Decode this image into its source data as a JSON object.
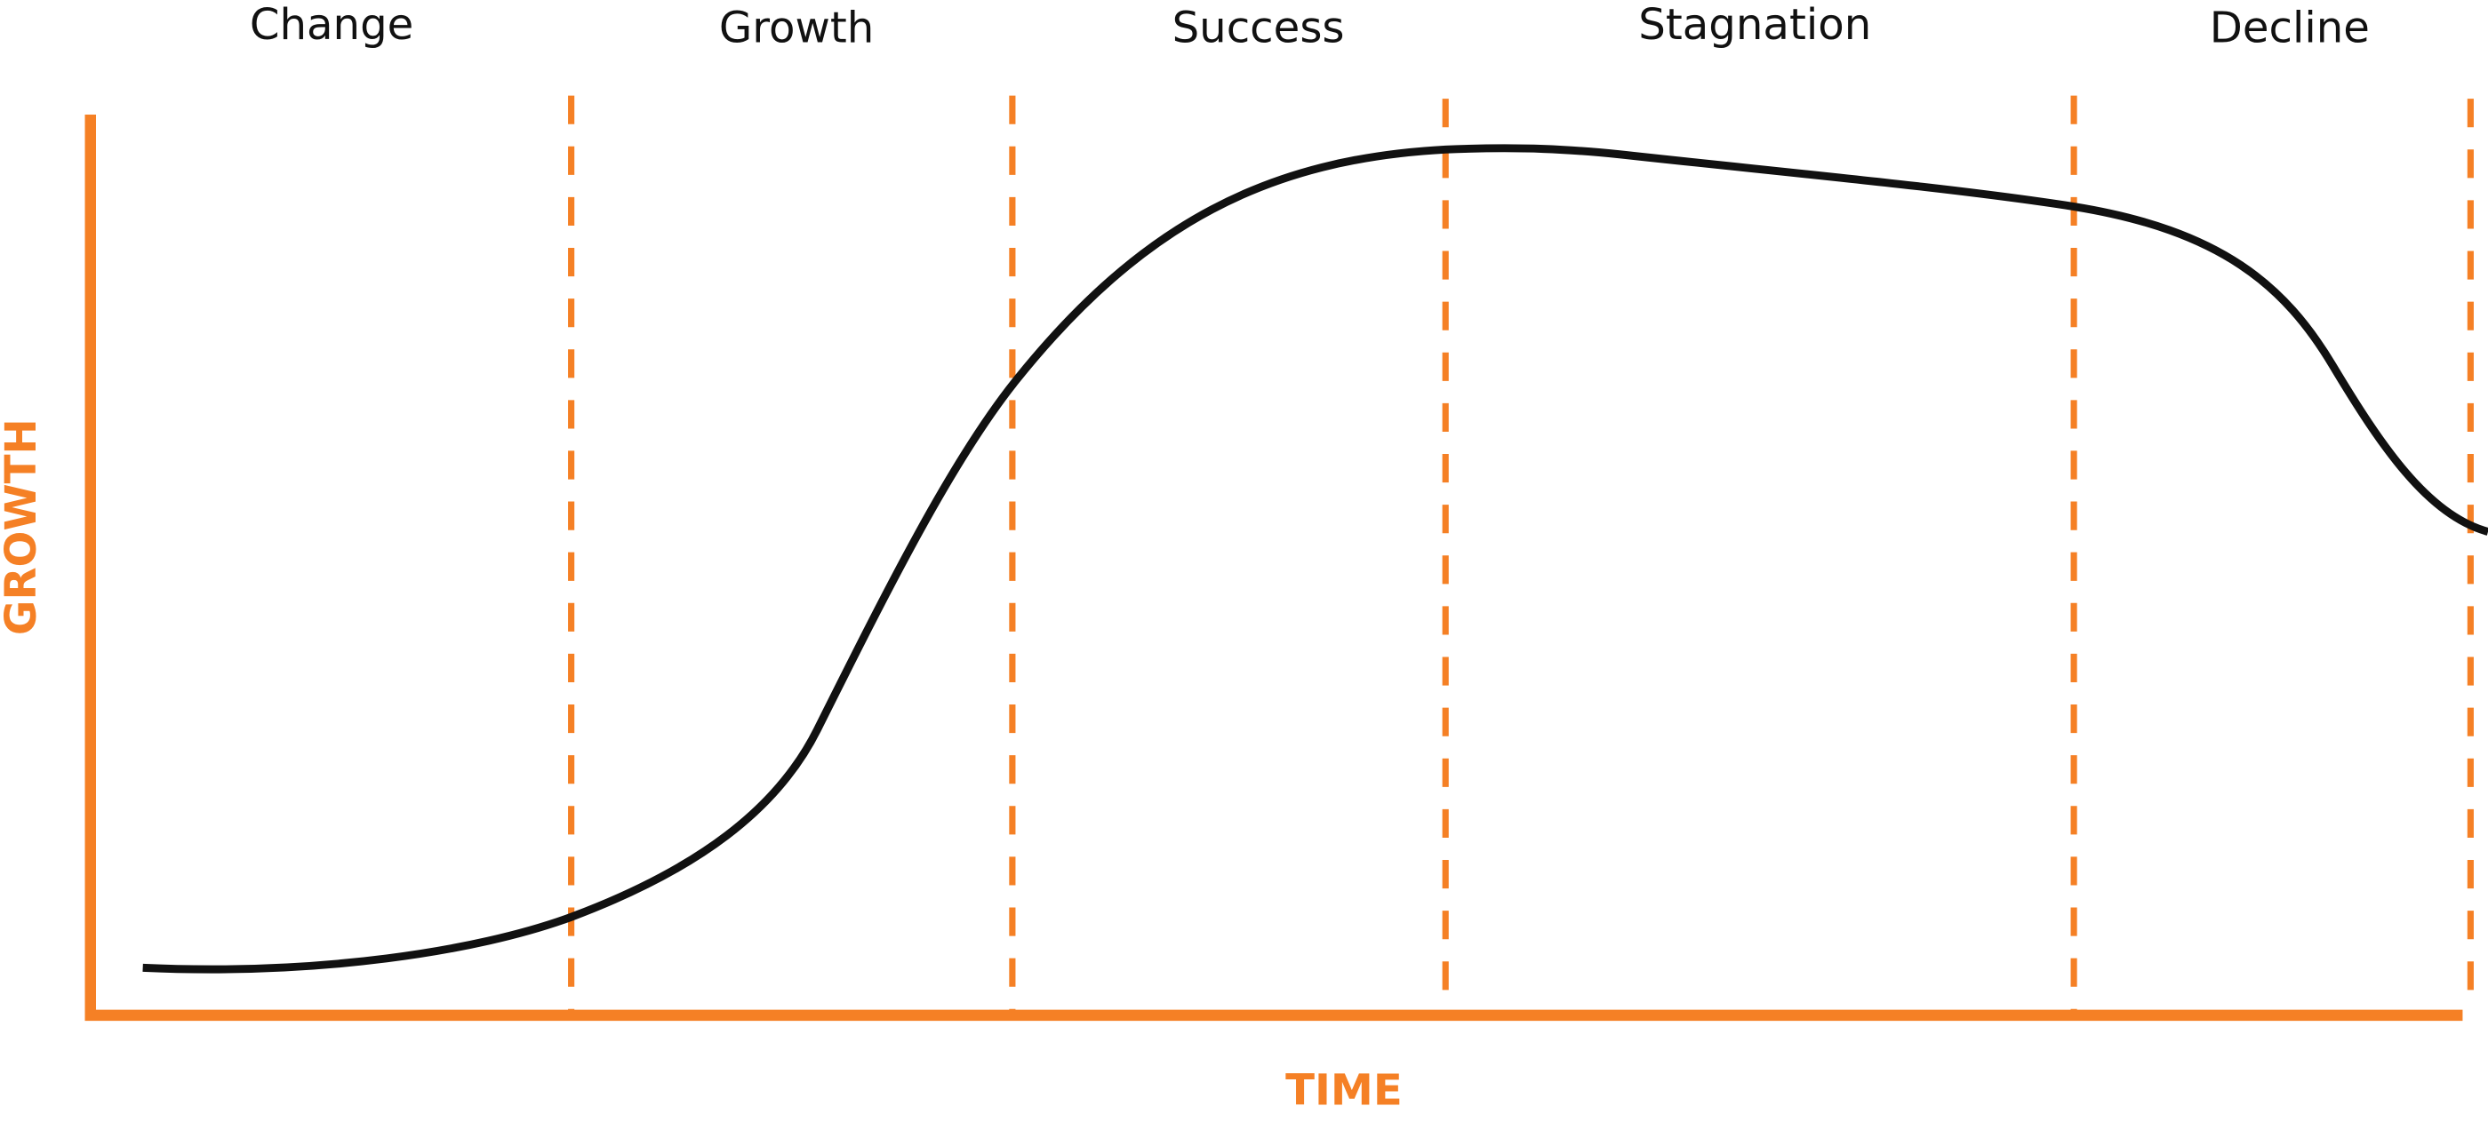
{
  "phases": [
    "Change",
    "Growth",
    "Success",
    "Stagnation",
    "Decline"
  ],
  "axes": {
    "y_label": "GROWTH",
    "x_label": "TIME"
  }
}
